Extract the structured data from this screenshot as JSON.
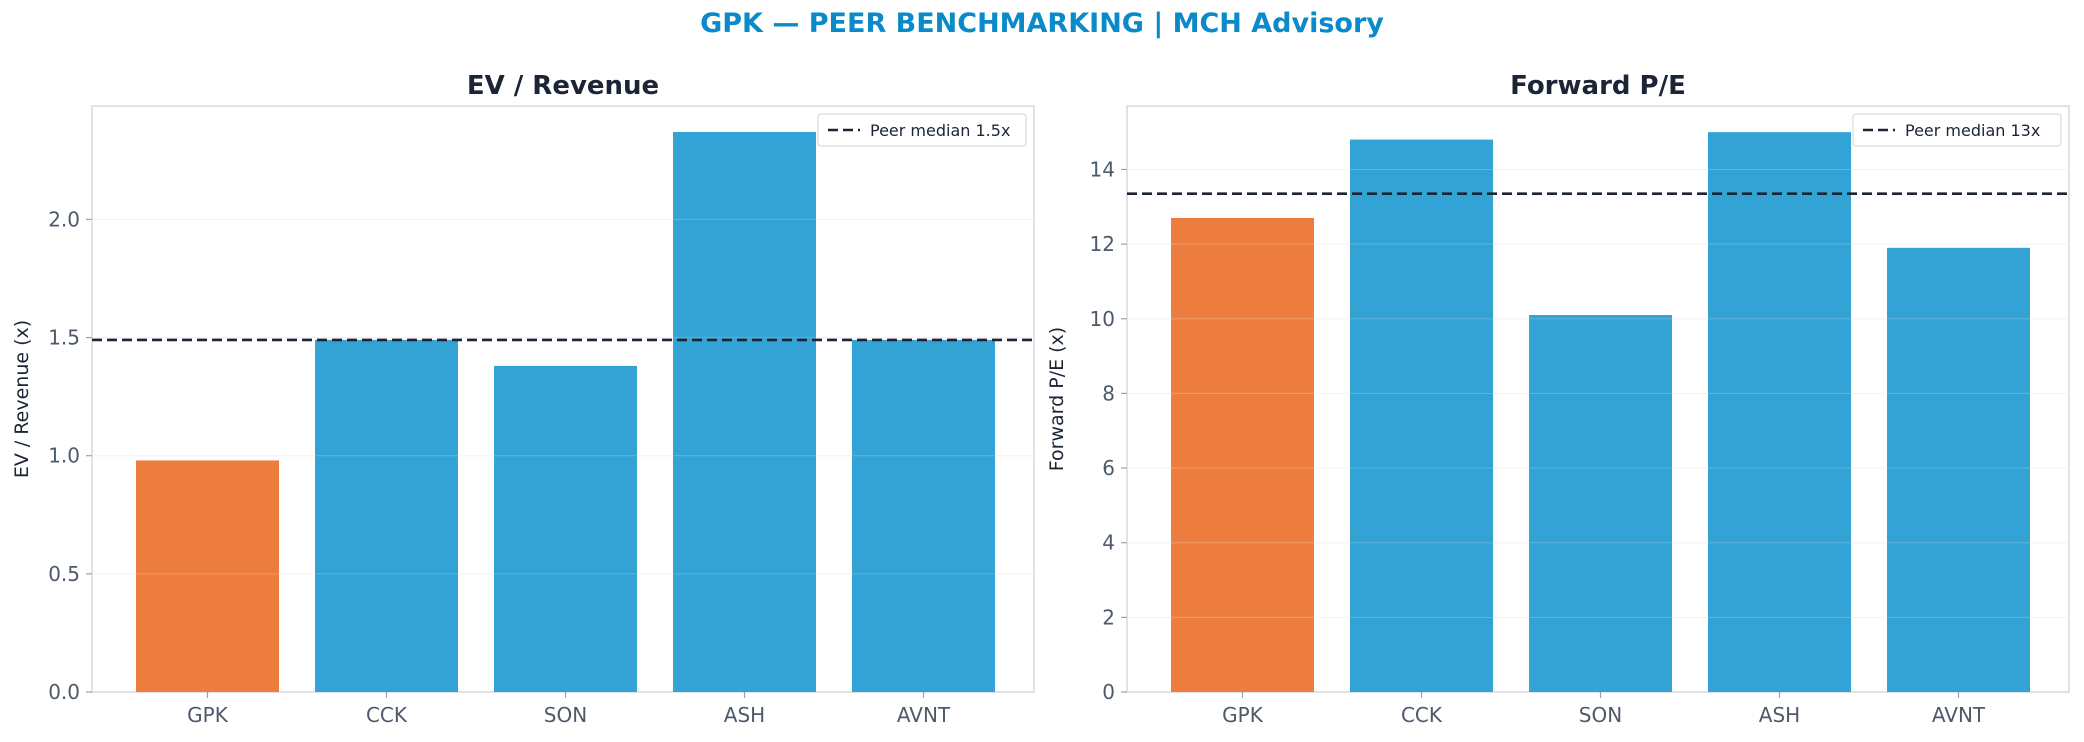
{
  "page": {
    "suptitle": "GPK — PEER BENCHMARKING | MCH Advisory"
  },
  "colors": {
    "highlight": "#ed7d3e",
    "peer": "#33a2d4",
    "median_line": "#1b2535",
    "title_accent": "#0a8ac8"
  },
  "chart_data": [
    {
      "type": "bar",
      "title": "EV / Revenue",
      "xlabel": "",
      "ylabel": "EV / Revenue (x)",
      "categories": [
        "GPK",
        "CCK",
        "SON",
        "ASH",
        "AVNT"
      ],
      "values": [
        0.98,
        1.49,
        1.38,
        2.37,
        1.49
      ],
      "highlight_category": "GPK",
      "ylim": [
        0,
        2.48
      ],
      "yticks": [
        0.0,
        0.5,
        1.0,
        1.5,
        2.0
      ],
      "ytick_labels": [
        "0.0",
        "0.5",
        "1.0",
        "1.5",
        "2.0"
      ],
      "reference_line": {
        "value": 1.49,
        "style": "dashed",
        "label": "Peer median 1.5x"
      },
      "legend": "top-right",
      "grid": "horizontal"
    },
    {
      "type": "bar",
      "title": "Forward P/E",
      "xlabel": "",
      "ylabel": "Forward P/E (x)",
      "categories": [
        "GPK",
        "CCK",
        "SON",
        "ASH",
        "AVNT"
      ],
      "values": [
        12.7,
        14.8,
        10.1,
        15.0,
        11.9
      ],
      "highlight_category": "GPK",
      "ylim": [
        0,
        15.7
      ],
      "yticks": [
        0,
        2,
        4,
        6,
        8,
        10,
        12,
        14
      ],
      "ytick_labels": [
        "0",
        "2",
        "4",
        "6",
        "8",
        "10",
        "12",
        "14"
      ],
      "reference_line": {
        "value": 13.35,
        "style": "dashed",
        "label": "Peer median 13x"
      },
      "legend": "top-right",
      "grid": "horizontal"
    }
  ]
}
